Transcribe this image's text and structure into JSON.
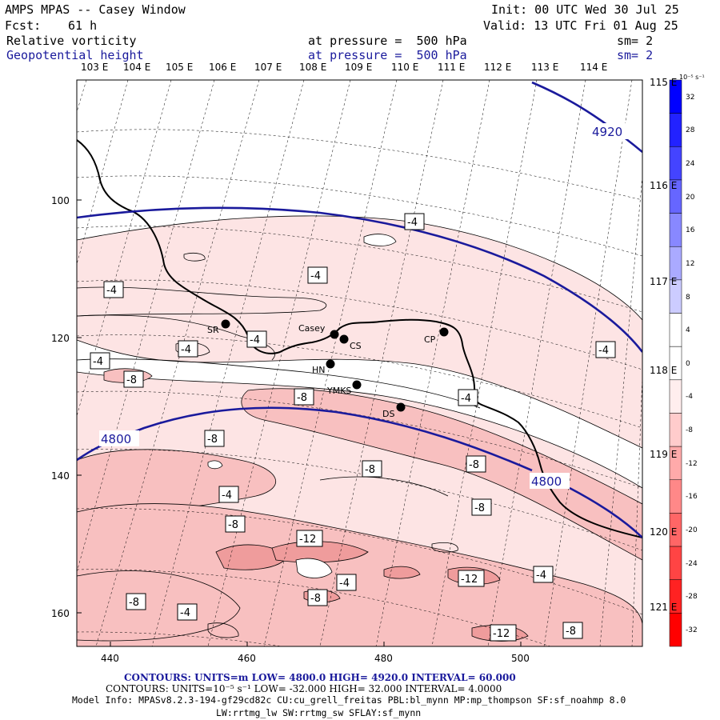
{
  "header": {
    "title": "AMPS MPAS -- Casey Window",
    "init": "Init: 00 UTC Wed 30 Jul 25",
    "fcst_label": "Fcst:",
    "fcst_value": "61 h",
    "valid": "Valid: 13 UTC Fri 01 Aug 25",
    "field1": "Relative vorticity",
    "field1_pressure": "at pressure =  500 hPa",
    "field1_sm": "sm= 2",
    "field2": "Geopotential height",
    "field2_pressure": "at pressure =  500 hPa",
    "field2_sm": "sm= 2"
  },
  "top_longitudes": [
    "103 E",
    "104 E",
    "105 E",
    "106 E",
    "107 E",
    "108 E",
    "109 E",
    "110 E",
    "111 E",
    "112 E",
    "113 E",
    "114 E"
  ],
  "right_longitudes": [
    "115 E",
    "116 E",
    "117 E",
    "118 E",
    "119 E",
    "120 E",
    "121 E"
  ],
  "y_ticks": [
    "100",
    "120",
    "140",
    "160"
  ],
  "x_ticks": [
    "440",
    "460",
    "480",
    "500"
  ],
  "stations": [
    {
      "name": "SR"
    },
    {
      "name": "Casey"
    },
    {
      "name": "CS"
    },
    {
      "name": "CP"
    },
    {
      "name": "HN"
    },
    {
      "name": "YMKS"
    },
    {
      "name": "DS"
    }
  ],
  "height_labels": [
    "4920",
    "4800",
    "4800"
  ],
  "vort_labels": [
    "-4",
    "-4",
    "-4",
    "-4",
    "-4",
    "-4",
    "-4",
    "-4",
    "-4",
    "-4",
    "-4",
    "-8",
    "-8",
    "-8",
    "-8",
    "-8",
    "-8",
    "-8",
    "-8",
    "-8",
    "-12",
    "-12",
    "-12",
    "-8",
    "-4"
  ],
  "colorbar": {
    "unit": "10⁻⁵ s⁻¹",
    "labels": [
      "32",
      "28",
      "24",
      "20",
      "16",
      "12",
      "8",
      "4",
      "0",
      "-4",
      "-8",
      "-12",
      "-16",
      "-20",
      "-24",
      "-28",
      "-32"
    ],
    "colors": [
      "#0000ff",
      "#2222ff",
      "#4444ff",
      "#6666ff",
      "#8888ff",
      "#aaaaff",
      "#ccccff",
      "#ffffff",
      "#ffffff",
      "#ffeeee",
      "#ffcccc",
      "#ffaaaa",
      "#ff8888",
      "#ff6666",
      "#ff4444",
      "#ff2222",
      "#ff0000"
    ]
  },
  "footer": {
    "line1": "CONTOURS:  UNITS=m  LOW=  4800.0        HIGH=  4920.0        INTERVAL=   60.000",
    "line2": "CONTOURS:  UNITS=10⁻⁵ s⁻¹  LOW= -32.000       HIGH=  32.000      INTERVAL=   4.0000",
    "line3": "Model Info: MPASv8.2.3-194-gf29cd82c CU:cu_grell_freitas PBL:bl_mynn MP:mp_thompson SF:sf_noahmp 8.0",
    "line4": "LW:rrtmg_lw SW:rrtmg_sw SFLAY:sf_mynn"
  }
}
